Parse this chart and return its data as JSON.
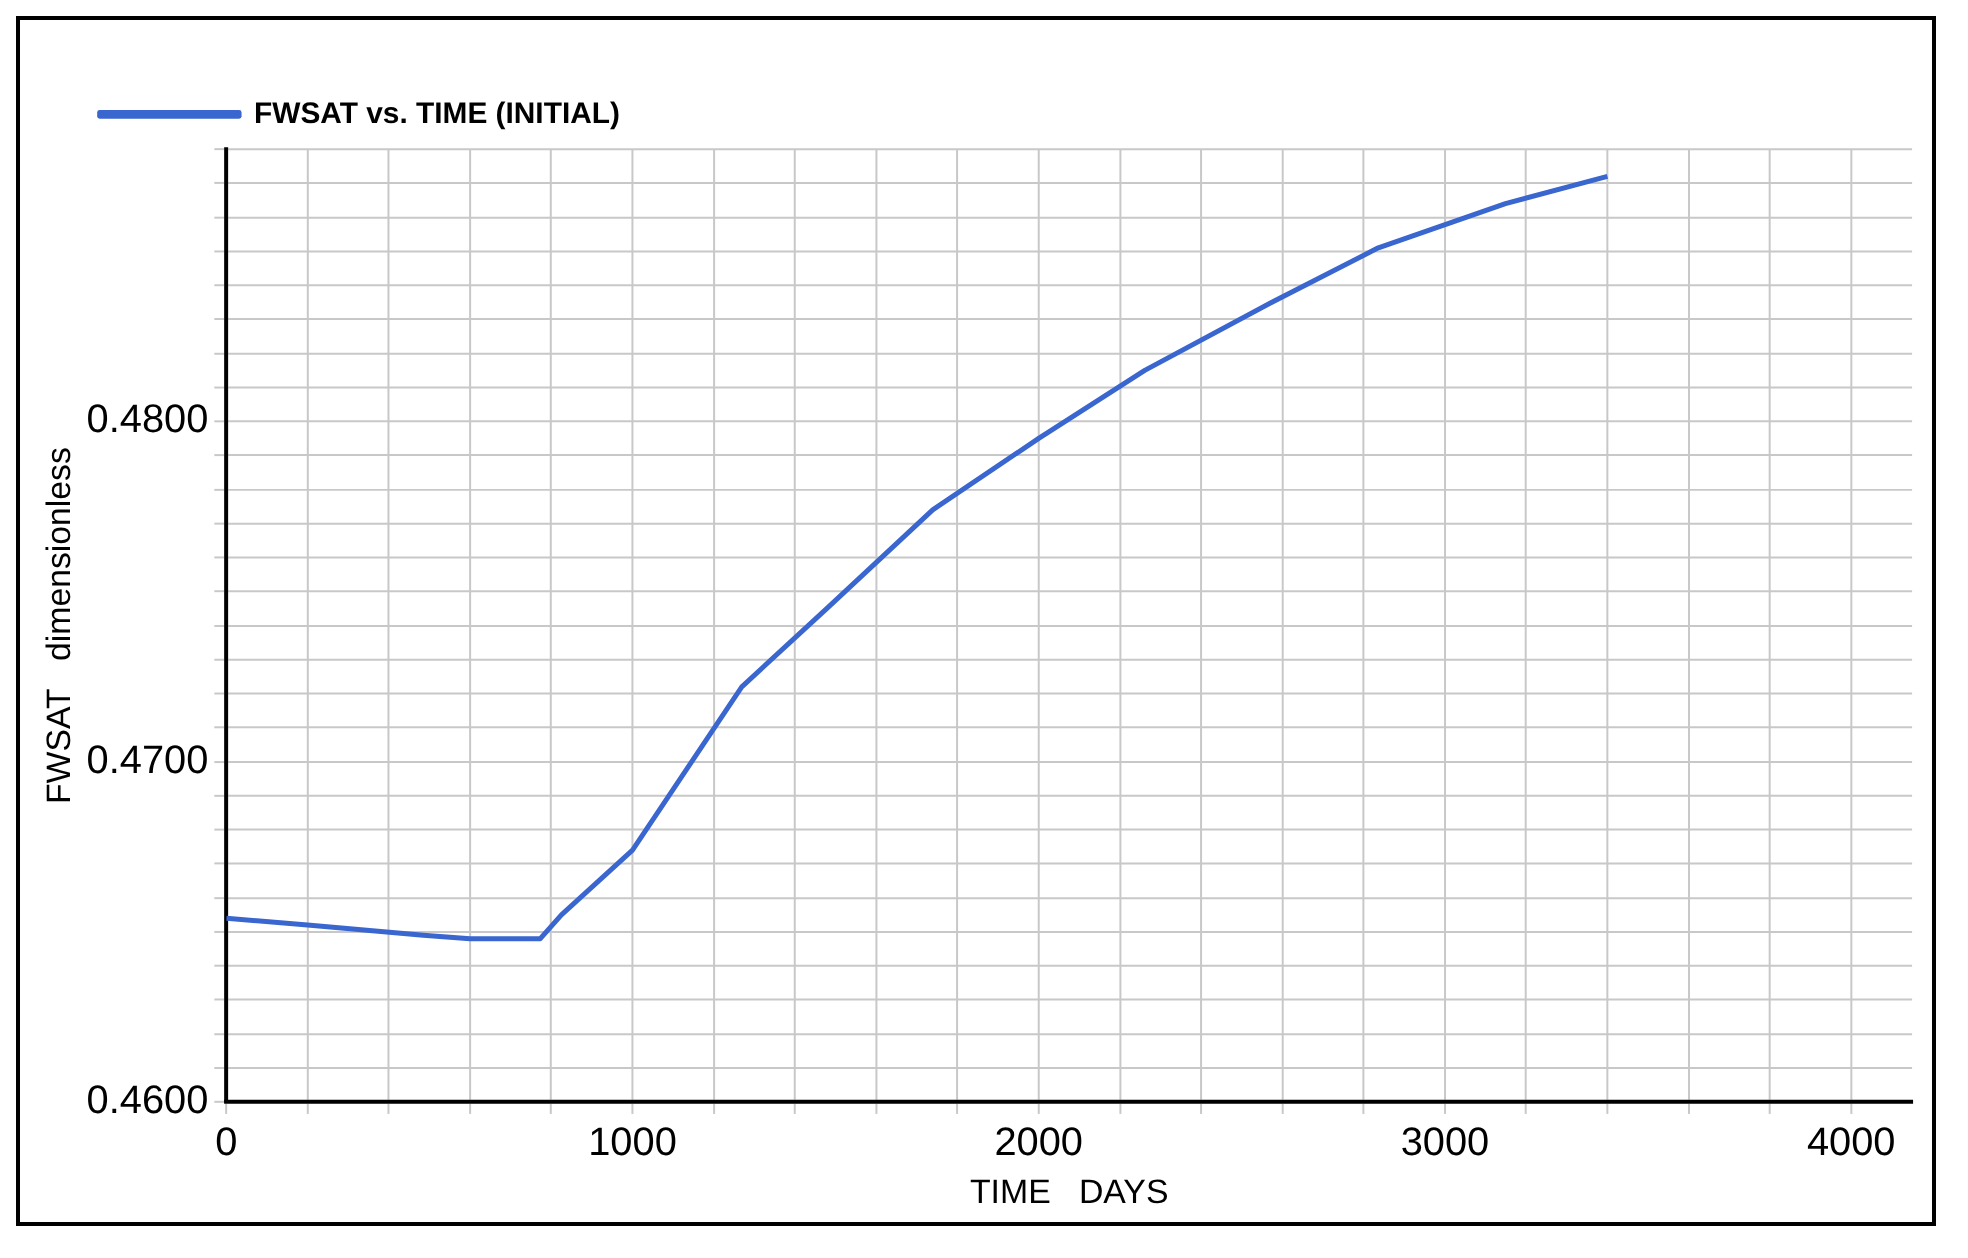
{
  "chart_data": {
    "type": "line",
    "xlabel": "TIME   DAYS",
    "ylabel": "FWSAT   dimensionless",
    "legend": "top left",
    "grid": true,
    "marker": "none",
    "line_style": "solid",
    "xlim": [
      0,
      4150
    ],
    "ylim": [
      0.46,
      0.488
    ],
    "xticks": [
      0,
      {
        "value": 200,
        "label": null
      },
      {
        "value": 400,
        "label": null
      },
      {
        "value": 600,
        "label": null
      },
      {
        "value": 800,
        "label": null
      },
      1000,
      {
        "value": 1200,
        "label": null
      },
      {
        "value": 1400,
        "label": null
      },
      {
        "value": 1600,
        "label": null
      },
      {
        "value": 1800,
        "label": null
      },
      2000,
      {
        "value": 2200,
        "label": null
      },
      {
        "value": 2400,
        "label": null
      },
      {
        "value": 2600,
        "label": null
      },
      {
        "value": 2800,
        "label": null
      },
      3000,
      {
        "value": 3200,
        "label": null
      },
      {
        "value": 3400,
        "label": null
      },
      {
        "value": 3600,
        "label": null
      },
      {
        "value": 3800,
        "label": null
      },
      4000
    ],
    "yticks": [
      {
        "value": 0.46,
        "label": "0.4600"
      },
      {
        "value": 0.461,
        "label": null
      },
      {
        "value": 0.462,
        "label": null
      },
      {
        "value": 0.463,
        "label": null
      },
      {
        "value": 0.464,
        "label": null
      },
      {
        "value": 0.465,
        "label": null
      },
      {
        "value": 0.466,
        "label": null
      },
      {
        "value": 0.467,
        "label": null
      },
      {
        "value": 0.468,
        "label": null
      },
      {
        "value": 0.469,
        "label": null
      },
      {
        "value": 0.47,
        "label": "0.4700"
      },
      {
        "value": 0.471,
        "label": null
      },
      {
        "value": 0.472,
        "label": null
      },
      {
        "value": 0.473,
        "label": null
      },
      {
        "value": 0.474,
        "label": null
      },
      {
        "value": 0.475,
        "label": null
      },
      {
        "value": 0.476,
        "label": null
      },
      {
        "value": 0.477,
        "label": null
      },
      {
        "value": 0.478,
        "label": null
      },
      {
        "value": 0.479,
        "label": null
      },
      {
        "value": 0.48,
        "label": "0.4800"
      },
      {
        "value": 0.481,
        "label": null
      },
      {
        "value": 0.482,
        "label": null
      },
      {
        "value": 0.483,
        "label": null
      },
      {
        "value": 0.484,
        "label": null
      },
      {
        "value": 0.485,
        "label": null
      },
      {
        "value": 0.486,
        "label": null
      },
      {
        "value": 0.487,
        "label": null
      },
      {
        "value": 0.488,
        "label": null
      }
    ],
    "series": [
      {
        "name": "FWSAT vs. TIME (INITIAL)",
        "color": "#3a66d0",
        "x": [
          0,
          200,
          485,
          600,
          773,
          825,
          1000,
          1269,
          1478,
          1739,
          2000,
          2261,
          2574,
          2836,
          3149,
          3400
        ],
        "values": [
          0.4654,
          0.4652,
          0.4649,
          0.4648,
          0.4648,
          0.4655,
          0.4674,
          0.4722,
          0.4745,
          0.4774,
          0.4795,
          0.4815,
          0.4835,
          0.4851,
          0.4864,
          0.4872
        ]
      }
    ]
  }
}
